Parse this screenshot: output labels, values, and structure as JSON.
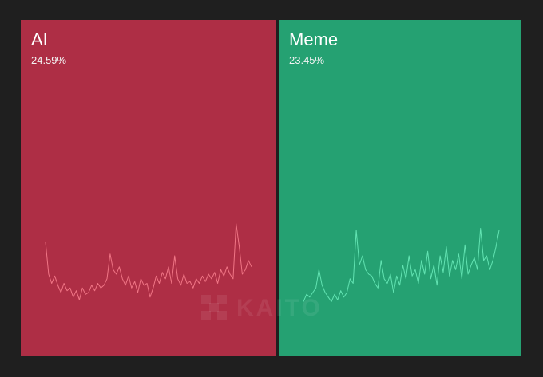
{
  "tiles": [
    {
      "name": "AI",
      "share": "24.59%",
      "color": "#ae2e45",
      "line_color": "#f07585",
      "sparkline": [
        75,
        40,
        30,
        38,
        28,
        20,
        30,
        22,
        25,
        15,
        22,
        12,
        25,
        18,
        20,
        28,
        22,
        30,
        25,
        28,
        35,
        62,
        45,
        40,
        48,
        35,
        28,
        38,
        25,
        32,
        20,
        35,
        28,
        30,
        15,
        25,
        38,
        30,
        42,
        35,
        48,
        30,
        60,
        35,
        28,
        40,
        30,
        32,
        25,
        35,
        30,
        38,
        32,
        40,
        35,
        42,
        30,
        45,
        38,
        48,
        40,
        35,
        95,
        70,
        40,
        45,
        55,
        48
      ]
    },
    {
      "name": "Meme",
      "share": "23.45%",
      "color": "#25a172",
      "line_color": "#62e3b2",
      "sparkline": [
        10,
        18,
        15,
        20,
        25,
        45,
        28,
        20,
        15,
        10,
        18,
        12,
        22,
        15,
        20,
        35,
        30,
        88,
        50,
        60,
        45,
        40,
        38,
        30,
        25,
        55,
        35,
        30,
        40,
        20,
        38,
        28,
        50,
        35,
        60,
        38,
        45,
        30,
        55,
        40,
        65,
        35,
        50,
        28,
        60,
        42,
        70,
        38,
        55,
        45,
        62,
        35,
        72,
        40,
        50,
        58,
        45,
        90,
        55,
        60,
        45,
        55,
        70,
        88
      ]
    }
  ],
  "watermark": "KAITO"
}
